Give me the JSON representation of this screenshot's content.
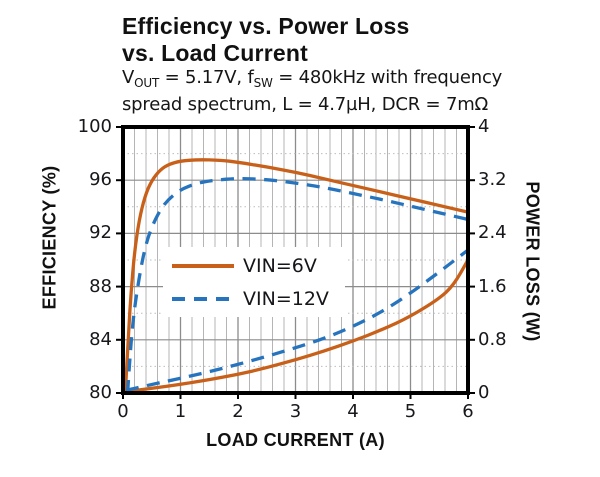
{
  "page": {
    "background": "#ffffff"
  },
  "chart_data": {
    "type": "line",
    "title": "Efficiency vs. Power Loss vs. Load Current",
    "title_line1": "Efficiency vs. Power Loss",
    "title_line2": "vs. Load Current",
    "subtitle": "VOUT = 5.17V, fSW = 480kHz with frequency spread spectrum, L = 4.7µH, DCR = 7mΩ",
    "subtitle_line1_parts": [
      {
        "text": "V"
      },
      {
        "text": "OUT",
        "sub": true
      },
      {
        "text": " = 5.17V, f"
      },
      {
        "text": "SW",
        "sub": true
      },
      {
        "text": " = 480kHz with frequency"
      }
    ],
    "subtitle_line2": "spread spectrum, L = 4.7µH, DCR = 7mΩ",
    "xlabel": "LOAD CURRENT  (A)",
    "ylabel_left": "EFFICIENCY  (%)",
    "ylabel_right": "POWER LOSS (W)",
    "xlim": [
      0,
      6
    ],
    "ylim_left": [
      80,
      100
    ],
    "ylim_right": [
      0,
      4
    ],
    "x_ticks": [
      "0",
      "1",
      "2",
      "3",
      "4",
      "5",
      "6"
    ],
    "y_ticks_left": [
      "100",
      "96",
      "92",
      "88",
      "84",
      "80"
    ],
    "y_ticks_right": [
      "4",
      "3.2",
      "2.4",
      "1.6",
      "0.8",
      "0"
    ],
    "grid": {
      "x_minor_step": 0.2,
      "x_major_step": 1,
      "y_minor_step": 2,
      "y_major_step": 4,
      "grid_on": true
    },
    "legend": {
      "position": "inside-center-left",
      "entries": [
        {
          "label": "VIN=6V",
          "color": "#C8601A",
          "style": "solid"
        },
        {
          "label": "VIN=12V",
          "color": "#2673BE",
          "style": "dashed"
        }
      ]
    },
    "series": [
      {
        "name": "VIN=6V efficiency",
        "axis": "left",
        "unit": "%",
        "color": "#C8601A",
        "style": "solid",
        "points": [
          [
            0.04,
            80.0
          ],
          [
            0.07,
            82.3
          ],
          [
            0.1,
            84.8
          ],
          [
            0.14,
            87.6
          ],
          [
            0.2,
            90.6
          ],
          [
            0.28,
            93.0
          ],
          [
            0.38,
            94.8
          ],
          [
            0.5,
            96.0
          ],
          [
            0.65,
            96.8
          ],
          [
            0.8,
            97.2
          ],
          [
            1.0,
            97.45
          ],
          [
            1.3,
            97.55
          ],
          [
            1.7,
            97.5
          ],
          [
            2.0,
            97.35
          ],
          [
            2.5,
            97.0
          ],
          [
            3.0,
            96.6
          ],
          [
            3.5,
            96.1
          ],
          [
            4.0,
            95.6
          ],
          [
            4.5,
            95.1
          ],
          [
            5.0,
            94.6
          ],
          [
            5.5,
            94.1
          ],
          [
            6.0,
            93.6
          ]
        ]
      },
      {
        "name": "VIN=12V efficiency",
        "axis": "left",
        "unit": "%",
        "color": "#2673BE",
        "style": "dashed",
        "points": [
          [
            0.08,
            80.0
          ],
          [
            0.11,
            82.0
          ],
          [
            0.15,
            84.3
          ],
          [
            0.2,
            86.4
          ],
          [
            0.3,
            89.2
          ],
          [
            0.4,
            91.2
          ],
          [
            0.5,
            92.5
          ],
          [
            0.65,
            93.8
          ],
          [
            0.8,
            94.6
          ],
          [
            1.0,
            95.3
          ],
          [
            1.3,
            95.8
          ],
          [
            1.6,
            96.0
          ],
          [
            2.0,
            96.15
          ],
          [
            2.5,
            96.05
          ],
          [
            3.0,
            95.8
          ],
          [
            3.5,
            95.45
          ],
          [
            4.0,
            95.0
          ],
          [
            4.5,
            94.55
          ],
          [
            5.0,
            94.05
          ],
          [
            5.5,
            93.55
          ],
          [
            6.0,
            93.05
          ]
        ]
      },
      {
        "name": "VIN=6V power loss",
        "axis": "right",
        "unit": "W",
        "color": "#C8601A",
        "style": "solid",
        "points": [
          [
            0.05,
            0.02
          ],
          [
            0.5,
            0.07
          ],
          [
            1.0,
            0.13
          ],
          [
            1.5,
            0.2
          ],
          [
            2.0,
            0.28
          ],
          [
            2.5,
            0.38
          ],
          [
            3.0,
            0.5
          ],
          [
            3.5,
            0.63
          ],
          [
            4.0,
            0.78
          ],
          [
            4.5,
            0.95
          ],
          [
            5.0,
            1.15
          ],
          [
            5.5,
            1.42
          ],
          [
            5.75,
            1.62
          ],
          [
            6.0,
            2.0
          ]
        ]
      },
      {
        "name": "VIN=12V power loss",
        "axis": "right",
        "unit": "W",
        "color": "#2673BE",
        "style": "dashed",
        "points": [
          [
            0.05,
            0.04
          ],
          [
            0.5,
            0.13
          ],
          [
            1.0,
            0.22
          ],
          [
            1.5,
            0.32
          ],
          [
            2.0,
            0.43
          ],
          [
            2.5,
            0.55
          ],
          [
            3.0,
            0.68
          ],
          [
            3.5,
            0.82
          ],
          [
            4.0,
            1.0
          ],
          [
            4.5,
            1.22
          ],
          [
            5.0,
            1.5
          ],
          [
            5.5,
            1.82
          ],
          [
            6.0,
            2.15
          ]
        ]
      }
    ],
    "colors": {
      "vin6": "#C8601A",
      "vin12": "#2673BE",
      "grid_major": "#8c8c8c",
      "grid_minor": "#b5b5b5",
      "grid_minor_dotted": "#bdbdbd",
      "axis_border": "#000000",
      "text": "#1a1a1a"
    }
  }
}
